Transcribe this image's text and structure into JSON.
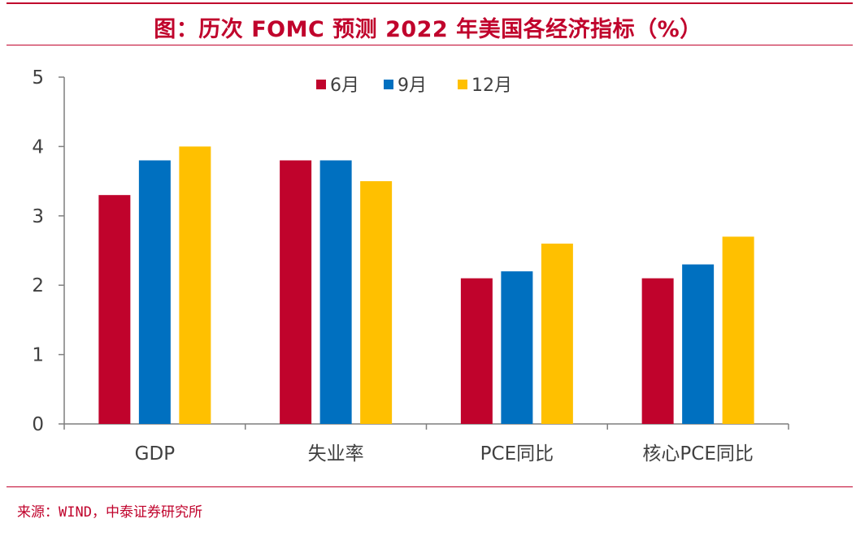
{
  "title": "图：历次 FOMC 预测 2022 年美国各经济指标（%）",
  "source": "来源：WIND，中泰证券研究所",
  "colors": {
    "accent": "#c0032c",
    "series": [
      "#c0032c",
      "#0070c0",
      "#ffc000"
    ],
    "axis": "#7f7f7f",
    "text": "#404040"
  },
  "chart_data": {
    "type": "bar",
    "title": "图：历次 FOMC 预测 2022 年美国各经济指标（%）",
    "xlabel": "",
    "ylabel": "",
    "ylim": [
      0,
      5
    ],
    "yticks": [
      "0",
      "1",
      "2",
      "3",
      "4",
      "5"
    ],
    "grid": false,
    "legend_position": "top-center",
    "categories": [
      "GDP",
      "失业率",
      "PCE同比",
      "核心PCE同比"
    ],
    "series": [
      {
        "name": "6月",
        "values": [
          3.3,
          3.8,
          2.1,
          2.1
        ]
      },
      {
        "name": "9月",
        "values": [
          3.8,
          3.8,
          2.2,
          2.3
        ]
      },
      {
        "name": "12月",
        "values": [
          4.0,
          3.5,
          2.6,
          2.7
        ]
      }
    ]
  }
}
